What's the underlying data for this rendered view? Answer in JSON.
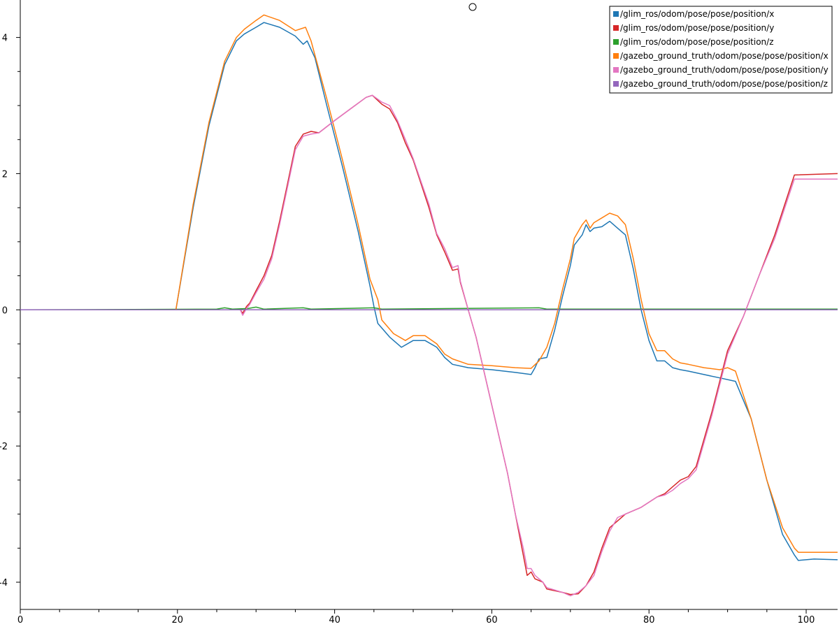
{
  "chart_data": {
    "type": "line",
    "xlim": [
      0,
      104
    ],
    "ylim": [
      -4.4,
      4.55
    ],
    "x_ticks": [
      0,
      20,
      40,
      60,
      80,
      100
    ],
    "y_ticks": [
      -4,
      -2,
      0,
      2,
      4
    ],
    "grid": false,
    "legend_position": "top-right",
    "series": [
      {
        "name": "/glim_ros/odom/pose/pose/position/x",
        "color": "#1f77b4",
        "points": [
          [
            0,
            0
          ],
          [
            19.8,
            0
          ],
          [
            22,
            1.5
          ],
          [
            24,
            2.7
          ],
          [
            26,
            3.6
          ],
          [
            27.5,
            3.95
          ],
          [
            28.5,
            4.05
          ],
          [
            30,
            4.15
          ],
          [
            31,
            4.22
          ],
          [
            33,
            4.15
          ],
          [
            35,
            4.02
          ],
          [
            36,
            3.9
          ],
          [
            36.5,
            3.95
          ],
          [
            37.5,
            3.7
          ],
          [
            39,
            3.0
          ],
          [
            41,
            2.1
          ],
          [
            43,
            1.15
          ],
          [
            44.5,
            0.35
          ],
          [
            45,
            0.05
          ],
          [
            45.5,
            -0.2
          ],
          [
            47,
            -0.4
          ],
          [
            48.5,
            -0.55
          ],
          [
            50,
            -0.45
          ],
          [
            51.5,
            -0.45
          ],
          [
            53,
            -0.55
          ],
          [
            54,
            -0.7
          ],
          [
            55,
            -0.8
          ],
          [
            57,
            -0.85
          ],
          [
            60,
            -0.88
          ],
          [
            63,
            -0.92
          ],
          [
            65,
            -0.95
          ],
          [
            65.5,
            -0.85
          ],
          [
            66,
            -0.72
          ],
          [
            67,
            -0.7
          ],
          [
            68,
            -0.3
          ],
          [
            69,
            0.2
          ],
          [
            70,
            0.65
          ],
          [
            70.5,
            0.95
          ],
          [
            71.5,
            1.1
          ],
          [
            72,
            1.25
          ],
          [
            72.5,
            1.15
          ],
          [
            73,
            1.2
          ],
          [
            74,
            1.22
          ],
          [
            75,
            1.3
          ],
          [
            76,
            1.2
          ],
          [
            77,
            1.1
          ],
          [
            78,
            0.6
          ],
          [
            79,
            0.0
          ],
          [
            80,
            -0.45
          ],
          [
            81,
            -0.75
          ],
          [
            82,
            -0.75
          ],
          [
            83,
            -0.85
          ],
          [
            84,
            -0.88
          ],
          [
            85,
            -0.9
          ],
          [
            87,
            -0.95
          ],
          [
            89,
            -1.0
          ],
          [
            91,
            -1.05
          ],
          [
            93,
            -1.6
          ],
          [
            95,
            -2.5
          ],
          [
            97,
            -3.3
          ],
          [
            98.5,
            -3.6
          ],
          [
            99,
            -3.68
          ],
          [
            101,
            -3.66
          ],
          [
            104,
            -3.67
          ]
        ]
      },
      {
        "name": "/glim_ros/odom/pose/pose/position/y",
        "color": "#d62728",
        "points": [
          [
            0,
            0
          ],
          [
            28,
            0
          ],
          [
            28.3,
            -0.05
          ],
          [
            28.8,
            0.05
          ],
          [
            29.2,
            0.1
          ],
          [
            30,
            0.28
          ],
          [
            31,
            0.5
          ],
          [
            32,
            0.8
          ],
          [
            33,
            1.3
          ],
          [
            34,
            1.85
          ],
          [
            35,
            2.4
          ],
          [
            36,
            2.58
          ],
          [
            37,
            2.62
          ],
          [
            38,
            2.6
          ],
          [
            40,
            2.78
          ],
          [
            42,
            2.95
          ],
          [
            44,
            3.12
          ],
          [
            44.8,
            3.15
          ],
          [
            46,
            3.02
          ],
          [
            47,
            2.95
          ],
          [
            48,
            2.75
          ],
          [
            49,
            2.45
          ],
          [
            50,
            2.2
          ],
          [
            51,
            1.85
          ],
          [
            52,
            1.5
          ],
          [
            53,
            1.1
          ],
          [
            54,
            0.85
          ],
          [
            55,
            0.58
          ],
          [
            55.7,
            0.6
          ],
          [
            56,
            0.4
          ],
          [
            57,
            0.0
          ],
          [
            58,
            -0.4
          ],
          [
            60,
            -1.4
          ],
          [
            62,
            -2.4
          ],
          [
            63,
            -3.0
          ],
          [
            64,
            -3.6
          ],
          [
            64.5,
            -3.9
          ],
          [
            65,
            -3.85
          ],
          [
            65.5,
            -3.95
          ],
          [
            66.5,
            -4.0
          ],
          [
            67,
            -4.1
          ],
          [
            69,
            -4.15
          ],
          [
            70,
            -4.18
          ],
          [
            71,
            -4.17
          ],
          [
            72,
            -4.05
          ],
          [
            73,
            -3.85
          ],
          [
            74,
            -3.5
          ],
          [
            75,
            -3.2
          ],
          [
            76,
            -3.1
          ],
          [
            77,
            -3.0
          ],
          [
            79,
            -2.9
          ],
          [
            81,
            -2.75
          ],
          [
            82,
            -2.7
          ],
          [
            83,
            -2.6
          ],
          [
            84,
            -2.5
          ],
          [
            85,
            -2.45
          ],
          [
            86,
            -2.3
          ],
          [
            88,
            -1.5
          ],
          [
            90,
            -0.6
          ],
          [
            92,
            -0.1
          ],
          [
            94,
            0.5
          ],
          [
            96,
            1.1
          ],
          [
            97,
            1.45
          ],
          [
            98.5,
            1.98
          ],
          [
            104,
            2.0
          ]
        ]
      },
      {
        "name": "/glim_ros/odom/pose/pose/position/z",
        "color": "#2ca02c",
        "points": [
          [
            0,
            0
          ],
          [
            25,
            0.01
          ],
          [
            26,
            0.03
          ],
          [
            27,
            0.01
          ],
          [
            29,
            0.02
          ],
          [
            30,
            0.04
          ],
          [
            31,
            0.01
          ],
          [
            36,
            0.03
          ],
          [
            37,
            0.01
          ],
          [
            45,
            0.03
          ],
          [
            46,
            0.01
          ],
          [
            66,
            0.03
          ],
          [
            67,
            0.01
          ],
          [
            104,
            0.01
          ]
        ]
      },
      {
        "name": "/gazebo_ground_truth/odom/pose/pose/position/x",
        "color": "#ff7f0e",
        "points": [
          [
            0,
            0
          ],
          [
            19.8,
            0
          ],
          [
            22,
            1.55
          ],
          [
            24,
            2.75
          ],
          [
            26,
            3.65
          ],
          [
            27.5,
            4.0
          ],
          [
            28.5,
            4.12
          ],
          [
            30,
            4.25
          ],
          [
            31,
            4.33
          ],
          [
            33,
            4.25
          ],
          [
            35,
            4.1
          ],
          [
            36.3,
            4.15
          ],
          [
            37,
            3.95
          ],
          [
            39,
            3.1
          ],
          [
            41,
            2.2
          ],
          [
            43,
            1.25
          ],
          [
            44.5,
            0.45
          ],
          [
            45.5,
            0.15
          ],
          [
            46,
            -0.15
          ],
          [
            47.5,
            -0.35
          ],
          [
            49,
            -0.45
          ],
          [
            50,
            -0.38
          ],
          [
            51.5,
            -0.38
          ],
          [
            53,
            -0.5
          ],
          [
            54,
            -0.65
          ],
          [
            55,
            -0.72
          ],
          [
            57,
            -0.8
          ],
          [
            60,
            -0.82
          ],
          [
            63,
            -0.85
          ],
          [
            65,
            -0.86
          ],
          [
            66,
            -0.75
          ],
          [
            67,
            -0.55
          ],
          [
            68,
            -0.2
          ],
          [
            69,
            0.3
          ],
          [
            70,
            0.75
          ],
          [
            70.5,
            1.05
          ],
          [
            71.5,
            1.25
          ],
          [
            72,
            1.32
          ],
          [
            72.5,
            1.2
          ],
          [
            73,
            1.28
          ],
          [
            74,
            1.35
          ],
          [
            75,
            1.42
          ],
          [
            76,
            1.38
          ],
          [
            77,
            1.25
          ],
          [
            78,
            0.75
          ],
          [
            79,
            0.15
          ],
          [
            80,
            -0.35
          ],
          [
            81,
            -0.6
          ],
          [
            82,
            -0.6
          ],
          [
            83,
            -0.72
          ],
          [
            84,
            -0.78
          ],
          [
            85,
            -0.8
          ],
          [
            87,
            -0.85
          ],
          [
            89,
            -0.88
          ],
          [
            90,
            -0.85
          ],
          [
            91,
            -0.9
          ],
          [
            93,
            -1.6
          ],
          [
            95,
            -2.5
          ],
          [
            97,
            -3.2
          ],
          [
            98.5,
            -3.5
          ],
          [
            99,
            -3.56
          ],
          [
            104,
            -3.56
          ]
        ]
      },
      {
        "name": "/gazebo_ground_truth/odom/pose/pose/position/y",
        "color": "#e377c2",
        "points": [
          [
            0,
            0
          ],
          [
            28,
            0
          ],
          [
            28.3,
            -0.08
          ],
          [
            28.8,
            0.02
          ],
          [
            29.2,
            0.08
          ],
          [
            30,
            0.25
          ],
          [
            31,
            0.45
          ],
          [
            32,
            0.75
          ],
          [
            33,
            1.25
          ],
          [
            34,
            1.8
          ],
          [
            35,
            2.35
          ],
          [
            36,
            2.55
          ],
          [
            37,
            2.58
          ],
          [
            38,
            2.6
          ],
          [
            40,
            2.78
          ],
          [
            42,
            2.95
          ],
          [
            44,
            3.12
          ],
          [
            44.8,
            3.15
          ],
          [
            46,
            3.05
          ],
          [
            47,
            3.0
          ],
          [
            48,
            2.78
          ],
          [
            49,
            2.5
          ],
          [
            50,
            2.22
          ],
          [
            51,
            1.88
          ],
          [
            52,
            1.55
          ],
          [
            53,
            1.12
          ],
          [
            54,
            0.9
          ],
          [
            55,
            0.62
          ],
          [
            55.7,
            0.65
          ],
          [
            56,
            0.42
          ],
          [
            57,
            0.0
          ],
          [
            58,
            -0.4
          ],
          [
            60,
            -1.4
          ],
          [
            62,
            -2.4
          ],
          [
            63,
            -3.0
          ],
          [
            64,
            -3.5
          ],
          [
            64.5,
            -3.8
          ],
          [
            65,
            -3.8
          ],
          [
            65.5,
            -3.9
          ],
          [
            66.5,
            -4.0
          ],
          [
            67,
            -4.08
          ],
          [
            69,
            -4.15
          ],
          [
            70,
            -4.2
          ],
          [
            71,
            -4.15
          ],
          [
            72,
            -4.05
          ],
          [
            73,
            -3.9
          ],
          [
            74,
            -3.55
          ],
          [
            75,
            -3.25
          ],
          [
            76,
            -3.05
          ],
          [
            77,
            -3.0
          ],
          [
            79,
            -2.9
          ],
          [
            81,
            -2.75
          ],
          [
            82,
            -2.72
          ],
          [
            83,
            -2.65
          ],
          [
            84,
            -2.55
          ],
          [
            85,
            -2.48
          ],
          [
            86,
            -2.35
          ],
          [
            88,
            -1.55
          ],
          [
            90,
            -0.65
          ],
          [
            92,
            -0.1
          ],
          [
            94,
            0.5
          ],
          [
            96,
            1.05
          ],
          [
            97,
            1.4
          ],
          [
            98.5,
            1.92
          ],
          [
            104,
            1.92
          ]
        ]
      },
      {
        "name": "/gazebo_ground_truth/odom/pose/pose/position/z",
        "color": "#9467bd",
        "points": [
          [
            0,
            0
          ],
          [
            104,
            0.0
          ]
        ]
      }
    ]
  }
}
